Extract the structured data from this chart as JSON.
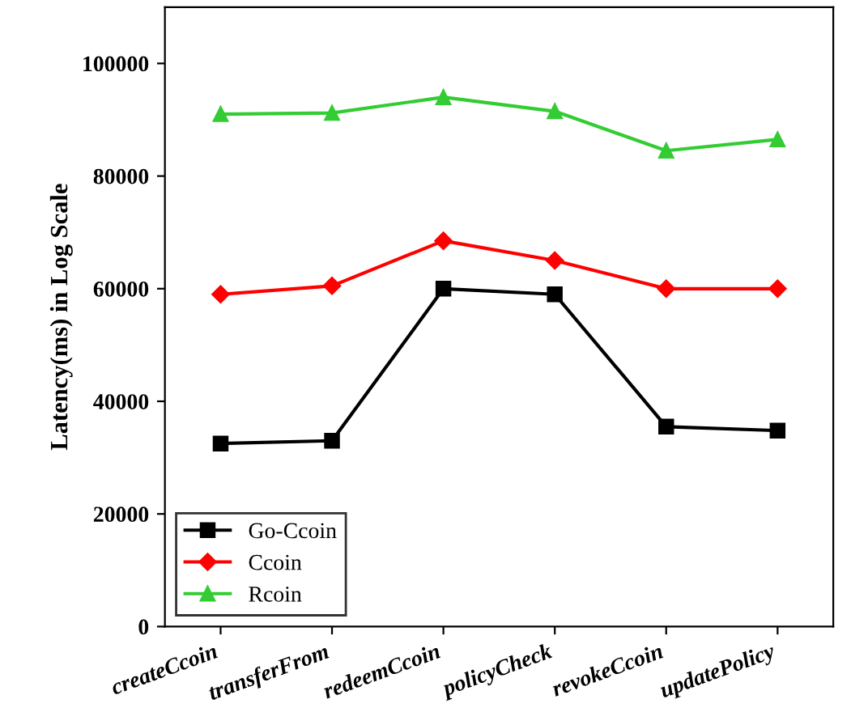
{
  "chart_data": {
    "type": "line",
    "ylabel": "Latency(ms) in Log Scale",
    "categories": [
      "createCcoin",
      "transferFrom",
      "redeemCcoin",
      "policyCheck",
      "revokeCcoin",
      "updatePolicy"
    ],
    "series": [
      {
        "name": "Go-Ccoin",
        "color": "#000000",
        "marker": "square",
        "values": [
          32500,
          33000,
          60000,
          59000,
          35500,
          34800
        ]
      },
      {
        "name": "Ccoin",
        "color": "#ff0000",
        "marker": "diamond",
        "values": [
          59000,
          60500,
          68500,
          65000,
          60000,
          60000
        ]
      },
      {
        "name": "Rcoin",
        "color": "#33cc33",
        "marker": "triangle",
        "values": [
          91000,
          91200,
          94000,
          91500,
          84500,
          86500
        ]
      }
    ],
    "ylim": [
      0,
      110000
    ],
    "yticks": [
      0,
      20000,
      40000,
      60000,
      80000,
      100000
    ],
    "grid": false,
    "legend": "bottom left",
    "line_style": "solid"
  }
}
